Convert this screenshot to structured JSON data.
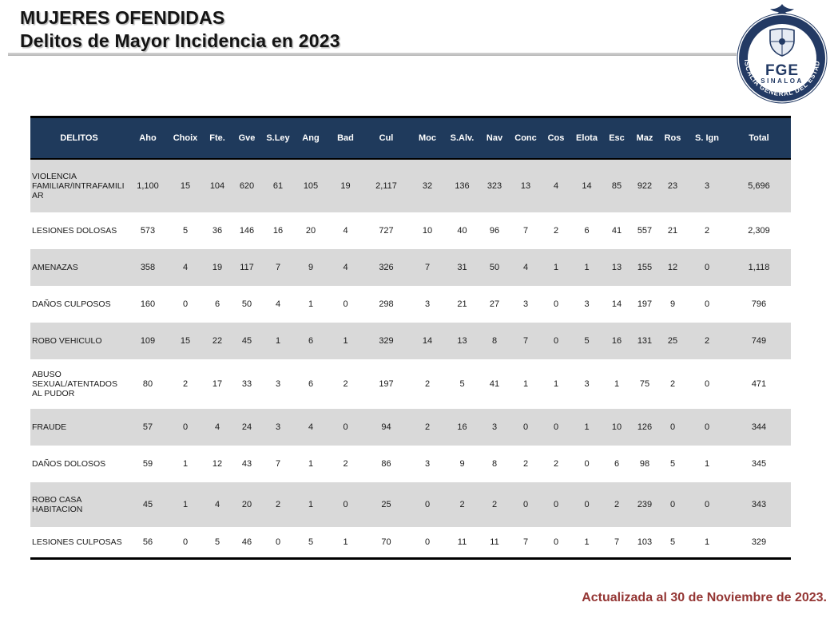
{
  "page": {
    "title_line1": "MUJERES OFENDIDAS",
    "title_line2": "Delitos de Mayor Incidencia en 2023",
    "footer_note": "Actualizada al 30 de Noviembre de 2023."
  },
  "logo": {
    "acronym": "FGE",
    "state": "SINALOA",
    "ring_text": "FISCALÍA GENERAL DEL ESTADO"
  },
  "table": {
    "header_row": [
      "DELITOS",
      "Aho",
      "Choix",
      "Fte.",
      "Gve",
      "S.Ley",
      "Ang",
      "Bad",
      "Cul",
      "Moc",
      "S.Alv.",
      "Nav",
      "Conc",
      "Cos",
      "Elota",
      "Esc",
      "Maz",
      "Ros",
      "S. Ign",
      "Total"
    ],
    "rows": [
      {
        "label": "VIOLENCIA FAMILIAR/INTRAFAMILIAR",
        "values": [
          "1,100",
          "15",
          "104",
          "620",
          "61",
          "105",
          "19",
          "2,117",
          "32",
          "136",
          "323",
          "13",
          "4",
          "14",
          "85",
          "922",
          "23",
          "3",
          "5,696"
        ]
      },
      {
        "label": "LESIONES DOLOSAS",
        "values": [
          "573",
          "5",
          "36",
          "146",
          "16",
          "20",
          "4",
          "727",
          "10",
          "40",
          "96",
          "7",
          "2",
          "6",
          "41",
          "557",
          "21",
          "2",
          "2,309"
        ]
      },
      {
        "label": "AMENAZAS",
        "values": [
          "358",
          "4",
          "19",
          "117",
          "7",
          "9",
          "4",
          "326",
          "7",
          "31",
          "50",
          "4",
          "1",
          "1",
          "13",
          "155",
          "12",
          "0",
          "1,118"
        ]
      },
      {
        "label": "DAÑOS CULPOSOS",
        "values": [
          "160",
          "0",
          "6",
          "50",
          "4",
          "1",
          "0",
          "298",
          "3",
          "21",
          "27",
          "3",
          "0",
          "3",
          "14",
          "197",
          "9",
          "0",
          "796"
        ]
      },
      {
        "label": "ROBO VEHICULO",
        "values": [
          "109",
          "15",
          "22",
          "45",
          "1",
          "6",
          "1",
          "329",
          "14",
          "13",
          "8",
          "7",
          "0",
          "5",
          "16",
          "131",
          "25",
          "2",
          "749"
        ]
      },
      {
        "label": "ABUSO SEXUAL/ATENTADOS AL PUDOR",
        "values": [
          "80",
          "2",
          "17",
          "33",
          "3",
          "6",
          "2",
          "197",
          "2",
          "5",
          "41",
          "1",
          "1",
          "3",
          "1",
          "75",
          "2",
          "0",
          "471"
        ]
      },
      {
        "label": "FRAUDE",
        "values": [
          "57",
          "0",
          "4",
          "24",
          "3",
          "4",
          "0",
          "94",
          "2",
          "16",
          "3",
          "0",
          "0",
          "1",
          "10",
          "126",
          "0",
          "0",
          "344"
        ]
      },
      {
        "label": "DAÑOS DOLOSOS",
        "values": [
          "59",
          "1",
          "12",
          "43",
          "7",
          "1",
          "2",
          "86",
          "3",
          "9",
          "8",
          "2",
          "2",
          "0",
          "6",
          "98",
          "5",
          "1",
          "345"
        ]
      },
      {
        "label": "ROBO CASA HABITACION",
        "values": [
          "45",
          "1",
          "4",
          "20",
          "2",
          "1",
          "0",
          "25",
          "0",
          "2",
          "2",
          "0",
          "0",
          "0",
          "2",
          "239",
          "0",
          "0",
          "343"
        ]
      },
      {
        "label": "LESIONES CULPOSAS",
        "values": [
          "56",
          "0",
          "5",
          "46",
          "0",
          "5",
          "1",
          "70",
          "0",
          "11",
          "11",
          "7",
          "0",
          "1",
          "7",
          "103",
          "5",
          "1",
          "329"
        ]
      }
    ]
  },
  "colors": {
    "header_bg": "#1f3a5c",
    "row_alt_bg": "#d9d9d9",
    "footer_text": "#943634",
    "logo_navy": "#233a64"
  }
}
